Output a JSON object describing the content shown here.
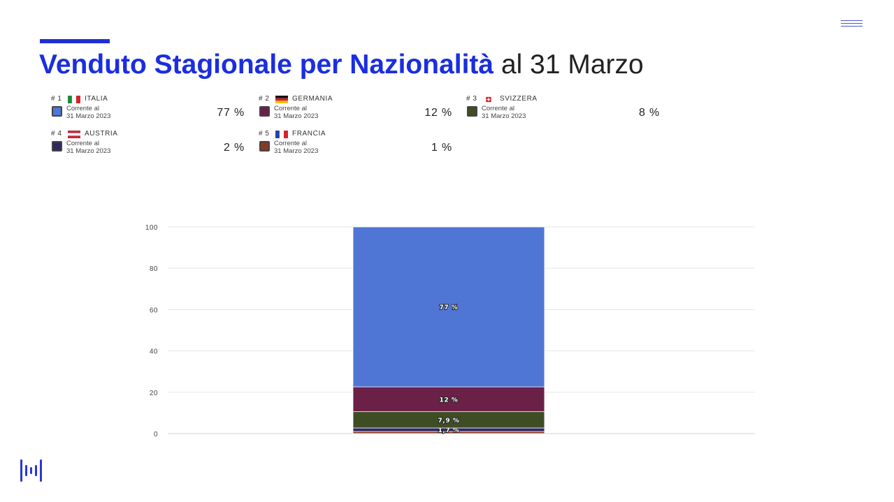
{
  "title": {
    "bold": "Venduto Stagionale per Nazionalità",
    "normal": " al 31 Marzo"
  },
  "legend": [
    {
      "rank": "# 1",
      "country": "ITALIA",
      "flag": "italy-flag",
      "sublabel": "Corrente al\n31 Marzo 2023",
      "value": "77 %",
      "color": "#4f76d4"
    },
    {
      "rank": "# 2",
      "country": "GERMANIA",
      "flag": "germany-flag",
      "sublabel": "Corrente al\n31 Marzo 2023",
      "value": "12 %",
      "color": "#6b2048"
    },
    {
      "rank": "# 3",
      "country": "SVIZZERA",
      "flag": "switzerland-flag",
      "sublabel": "Corrente al\n31 Marzo 2023",
      "value": "8 %",
      "color": "#3f4d25"
    },
    {
      "rank": "# 4",
      "country": "AUSTRIA",
      "flag": "austria-flag",
      "sublabel": "Corrente al\n31 Marzo 2023",
      "value": "2 %",
      "color": "#2f2860"
    },
    {
      "rank": "# 5",
      "country": "FRANCIA",
      "flag": "france-flag",
      "sublabel": "Corrente al\n31 Marzo 2023",
      "value": "1 %",
      "color": "#8a3a22"
    }
  ],
  "chart_data": {
    "type": "bar",
    "stacked": true,
    "ylim": [
      0,
      100
    ],
    "yticks": [
      "0",
      "20",
      "40",
      "60",
      "80",
      "100"
    ],
    "grid": true,
    "series": [
      {
        "name": "FRANCIA",
        "value": 1.0,
        "color": "#8a3a22",
        "label": ""
      },
      {
        "name": "AUSTRIA",
        "value": 1.7,
        "color": "#2f2860",
        "label": "1,7 %"
      },
      {
        "name": "SVIZZERA",
        "value": 7.9,
        "color": "#3f4d25",
        "label": "7,9 %"
      },
      {
        "name": "GERMANIA",
        "value": 12.0,
        "color": "#6b2048",
        "label": "12 %"
      },
      {
        "name": "ITALIA",
        "value": 77.4,
        "color": "#4f76d4",
        "label": "77 %"
      }
    ]
  },
  "colors": {
    "accent": "#1f2fd6",
    "title_blue": "#1a2ee0"
  }
}
